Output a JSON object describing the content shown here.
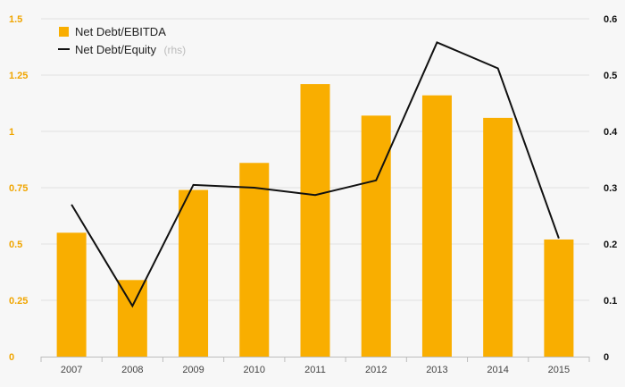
{
  "chart_data": {
    "type": "bar",
    "categories": [
      "2007",
      "2008",
      "2009",
      "2010",
      "2011",
      "2012",
      "2013",
      "2014",
      "2015"
    ],
    "series": [
      {
        "name": "Net Debt/EBITDA",
        "kind": "bar",
        "axis": "left",
        "color": "#f9ae00",
        "values": [
          0.55,
          0.34,
          0.74,
          0.86,
          1.21,
          1.07,
          1.16,
          1.06,
          0.52
        ]
      },
      {
        "name": "Net Debt/Equity",
        "suffix": "(rhs)",
        "kind": "line",
        "axis": "right",
        "color": "#111111",
        "values": [
          0.27,
          0.09,
          0.305,
          0.3,
          0.287,
          0.313,
          0.558,
          0.512,
          0.21
        ]
      }
    ],
    "y_left": {
      "ylim": [
        0,
        1.5
      ],
      "ticks": [
        0,
        0.25,
        0.5,
        0.75,
        1,
        1.25,
        1.5
      ],
      "tick_labels": [
        "0",
        "0.25",
        "0.5",
        "0.75",
        "1",
        "1.25",
        "1.5"
      ],
      "color": "#f0a500"
    },
    "y_right": {
      "ylim": [
        0,
        0.6
      ],
      "ticks": [
        0,
        0.1,
        0.2,
        0.3,
        0.4,
        0.5,
        0.6
      ],
      "tick_labels": [
        "0",
        "0.1",
        "0.2",
        "0.3",
        "0.4",
        "0.5",
        "0.6"
      ],
      "color": "#111111"
    },
    "grid": true,
    "legend_position": "top-left"
  }
}
